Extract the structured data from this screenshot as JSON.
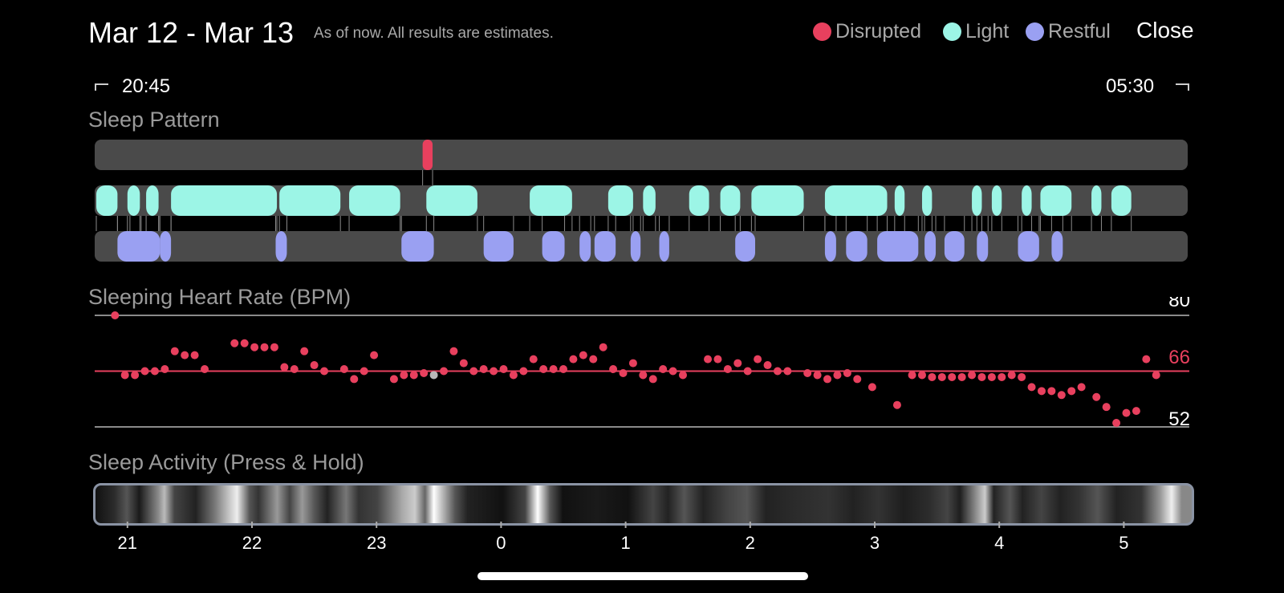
{
  "header": {
    "title": "Mar 12 - Mar 13",
    "subtitle": "As of now. All results are estimates.",
    "close_label": "Close"
  },
  "legend": [
    {
      "label": "Disrupted",
      "color": "#e8405e"
    },
    {
      "label": "Light",
      "color": "#9cf5e6"
    },
    {
      "label": "Restful",
      "color": "#9aa0f2"
    }
  ],
  "time_range": {
    "start": "20:45",
    "end": "05:30"
  },
  "sections": {
    "sleep_pattern": "Sleep Pattern",
    "heart_rate": "Sleeping Heart Rate (BPM)",
    "activity": "Sleep Activity (Press & Hold)"
  },
  "sleep_pattern": {
    "start_hour": 20.75,
    "end_hour": 29.5,
    "colors": {
      "track": "#4a4a4a",
      "disrupted": "#e8405e",
      "light": "#9cf5e6",
      "restful": "#9aa0f2"
    },
    "disrupted": [
      [
        23.37,
        23.45
      ]
    ],
    "light": [
      [
        20.75,
        20.92
      ],
      [
        21.0,
        21.1
      ],
      [
        21.15,
        21.25
      ],
      [
        21.35,
        22.2
      ],
      [
        22.22,
        22.71
      ],
      [
        22.78,
        23.19
      ],
      [
        23.4,
        23.81
      ],
      [
        24.23,
        24.57
      ],
      [
        24.86,
        25.06
      ],
      [
        25.14,
        25.24
      ],
      [
        25.51,
        25.67
      ],
      [
        25.76,
        25.92
      ],
      [
        26.01,
        26.43
      ],
      [
        26.6,
        27.1
      ],
      [
        27.16,
        27.24
      ],
      [
        27.38,
        27.46
      ],
      [
        27.78,
        27.86
      ],
      [
        27.94,
        28.02
      ],
      [
        28.18,
        28.26
      ],
      [
        28.33,
        28.58
      ],
      [
        28.74,
        28.82
      ],
      [
        28.9,
        29.06
      ]
    ],
    "restful": [
      [
        20.92,
        21.26
      ],
      [
        21.02,
        21.11
      ],
      [
        21.26,
        21.35
      ],
      [
        22.19,
        22.28
      ],
      [
        23.2,
        23.46
      ],
      [
        23.86,
        24.1
      ],
      [
        24.33,
        24.51
      ],
      [
        24.63,
        24.72
      ],
      [
        24.75,
        24.92
      ],
      [
        25.04,
        25.12
      ],
      [
        25.27,
        25.35
      ],
      [
        25.88,
        26.04
      ],
      [
        26.6,
        26.69
      ],
      [
        26.77,
        26.94
      ],
      [
        27.02,
        27.35
      ],
      [
        27.4,
        27.49
      ],
      [
        27.56,
        27.72
      ],
      [
        27.82,
        27.91
      ],
      [
        28.15,
        28.32
      ],
      [
        28.42,
        28.51
      ]
    ]
  },
  "heart_rate": {
    "max_label": "80",
    "min_label": "52",
    "avg_label": "66",
    "max": 80,
    "min": 52,
    "avg": 66,
    "point_color": "#e8405e",
    "grey_point_color": "#b8b8b8",
    "points": [
      [
        20.9,
        80
      ],
      [
        20.98,
        65
      ],
      [
        21.06,
        65
      ],
      [
        21.14,
        66
      ],
      [
        21.22,
        66
      ],
      [
        21.3,
        66.5
      ],
      [
        21.38,
        71
      ],
      [
        21.46,
        70
      ],
      [
        21.54,
        70
      ],
      [
        21.62,
        66.5
      ],
      [
        21.86,
        73
      ],
      [
        21.94,
        73
      ],
      [
        22.02,
        72
      ],
      [
        22.1,
        72
      ],
      [
        22.18,
        72
      ],
      [
        22.26,
        67
      ],
      [
        22.34,
        66.5
      ],
      [
        22.42,
        71
      ],
      [
        22.5,
        67.5
      ],
      [
        22.58,
        66
      ],
      [
        22.74,
        66.5
      ],
      [
        22.82,
        64
      ],
      [
        22.9,
        66
      ],
      [
        22.98,
        70
      ],
      [
        23.14,
        64
      ],
      [
        23.22,
        65
      ],
      [
        23.3,
        65
      ],
      [
        23.38,
        65.5
      ],
      [
        23.46,
        65,
        "grey"
      ],
      [
        23.54,
        66
      ],
      [
        23.62,
        71
      ],
      [
        23.7,
        68
      ],
      [
        23.78,
        66
      ],
      [
        23.86,
        66.5
      ],
      [
        23.94,
        66
      ],
      [
        24.02,
        66.5
      ],
      [
        24.1,
        65
      ],
      [
        24.18,
        66
      ],
      [
        24.26,
        69
      ],
      [
        24.34,
        66.5
      ],
      [
        24.42,
        66.5
      ],
      [
        24.5,
        66.5
      ],
      [
        24.58,
        69
      ],
      [
        24.66,
        70
      ],
      [
        24.74,
        69
      ],
      [
        24.82,
        72
      ],
      [
        24.9,
        66.5
      ],
      [
        24.98,
        65.5
      ],
      [
        25.06,
        68
      ],
      [
        25.14,
        65
      ],
      [
        25.22,
        64
      ],
      [
        25.3,
        66.5
      ],
      [
        25.38,
        66
      ],
      [
        25.46,
        65
      ],
      [
        25.66,
        69
      ],
      [
        25.74,
        69
      ],
      [
        25.82,
        66.5
      ],
      [
        25.9,
        68
      ],
      [
        25.98,
        66
      ],
      [
        26.06,
        69
      ],
      [
        26.14,
        67.5
      ],
      [
        26.22,
        66
      ],
      [
        26.3,
        66
      ],
      [
        26.46,
        65.5
      ],
      [
        26.54,
        65
      ],
      [
        26.62,
        64
      ],
      [
        26.7,
        65
      ],
      [
        26.78,
        65.5
      ],
      [
        26.86,
        64
      ],
      [
        26.98,
        62
      ],
      [
        27.18,
        57.5
      ],
      [
        27.3,
        65
      ],
      [
        27.38,
        65
      ],
      [
        27.46,
        64.5
      ],
      [
        27.54,
        64.5
      ],
      [
        27.62,
        64.5
      ],
      [
        27.7,
        64.5
      ],
      [
        27.78,
        65
      ],
      [
        27.86,
        64.5
      ],
      [
        27.94,
        64.5
      ],
      [
        28.02,
        64.5
      ],
      [
        28.1,
        65
      ],
      [
        28.18,
        64.5
      ],
      [
        28.26,
        62
      ],
      [
        28.34,
        61
      ],
      [
        28.42,
        61
      ],
      [
        28.5,
        60
      ],
      [
        28.58,
        61
      ],
      [
        28.66,
        62
      ],
      [
        28.78,
        59.5
      ],
      [
        28.86,
        57
      ],
      [
        28.94,
        53
      ],
      [
        29.02,
        55.5
      ],
      [
        29.1,
        56
      ],
      [
        29.18,
        69
      ],
      [
        29.26,
        65
      ]
    ]
  },
  "activity": {
    "segments": [
      [
        "20.75",
        "#111"
      ],
      [
        "20.9",
        "#2b2b2b"
      ],
      [
        "21.0",
        "#555"
      ],
      [
        "21.1",
        "#1a1a1a"
      ],
      [
        "21.25",
        "#888"
      ],
      [
        "21.3",
        "#bbb"
      ],
      [
        "21.38",
        "#444"
      ],
      [
        "21.55",
        "#222"
      ],
      [
        "21.7",
        "#777"
      ],
      [
        "21.8",
        "#bbb"
      ],
      [
        "21.88",
        "#eee"
      ],
      [
        "21.98",
        "#555"
      ],
      [
        "22.05",
        "#333"
      ],
      [
        "22.2",
        "#999"
      ],
      [
        "22.3",
        "#444"
      ],
      [
        "22.4",
        "#999"
      ],
      [
        "22.5",
        "#555"
      ],
      [
        "22.6",
        "#222"
      ],
      [
        "22.75",
        "#777"
      ],
      [
        "22.85",
        "#333"
      ],
      [
        "23.0",
        "#444"
      ],
      [
        "23.2",
        "#aaa"
      ],
      [
        "23.3",
        "#ccc"
      ],
      [
        "23.38",
        "#666"
      ],
      [
        "23.45",
        "#fff"
      ],
      [
        "23.62",
        "#555"
      ],
      [
        "23.72",
        "#222"
      ],
      [
        "24.0",
        "#111"
      ],
      [
        "24.18",
        "#444"
      ],
      [
        "24.28",
        "#fff"
      ],
      [
        "24.38",
        "#555"
      ],
      [
        "24.48",
        "#111"
      ],
      [
        "24.75",
        "#1a1a1a"
      ],
      [
        "25.0",
        "#111"
      ],
      [
        "25.2",
        "#444"
      ],
      [
        "25.32",
        "#222"
      ],
      [
        "25.45",
        "#555"
      ],
      [
        "25.6",
        "#222"
      ],
      [
        "25.8",
        "#444"
      ],
      [
        "25.95",
        "#555"
      ],
      [
        "26.1",
        "#222"
      ],
      [
        "26.3",
        "#2a2a2a"
      ],
      [
        "26.6",
        "#333"
      ],
      [
        "26.8",
        "#222"
      ],
      [
        "27.0",
        "#333"
      ],
      [
        "27.2",
        "#1e1e1e"
      ],
      [
        "27.4",
        "#2c2c2c"
      ],
      [
        "27.55",
        "#444"
      ],
      [
        "27.65",
        "#1e1e1e"
      ],
      [
        "27.85",
        "#ccc"
      ],
      [
        "27.92",
        "#222"
      ],
      [
        "28.05",
        "#555"
      ],
      [
        "28.15",
        "#222"
      ],
      [
        "28.3",
        "#444"
      ],
      [
        "28.45",
        "#222"
      ],
      [
        "28.6",
        "#333"
      ],
      [
        "28.75",
        "#555"
      ],
      [
        "28.9",
        "#222"
      ],
      [
        "29.1",
        "#333"
      ],
      [
        "29.25",
        "#999"
      ],
      [
        "29.34",
        "#eee"
      ],
      [
        "29.42",
        "#888"
      ]
    ]
  },
  "x_axis": {
    "ticks": [
      {
        "label": "21",
        "hour": 21
      },
      {
        "label": "22",
        "hour": 22
      },
      {
        "label": "23",
        "hour": 23
      },
      {
        "label": "0",
        "hour": 24
      },
      {
        "label": "1",
        "hour": 25
      },
      {
        "label": "2",
        "hour": 26
      },
      {
        "label": "3",
        "hour": 27
      },
      {
        "label": "4",
        "hour": 28
      },
      {
        "label": "5",
        "hour": 29
      }
    ]
  }
}
